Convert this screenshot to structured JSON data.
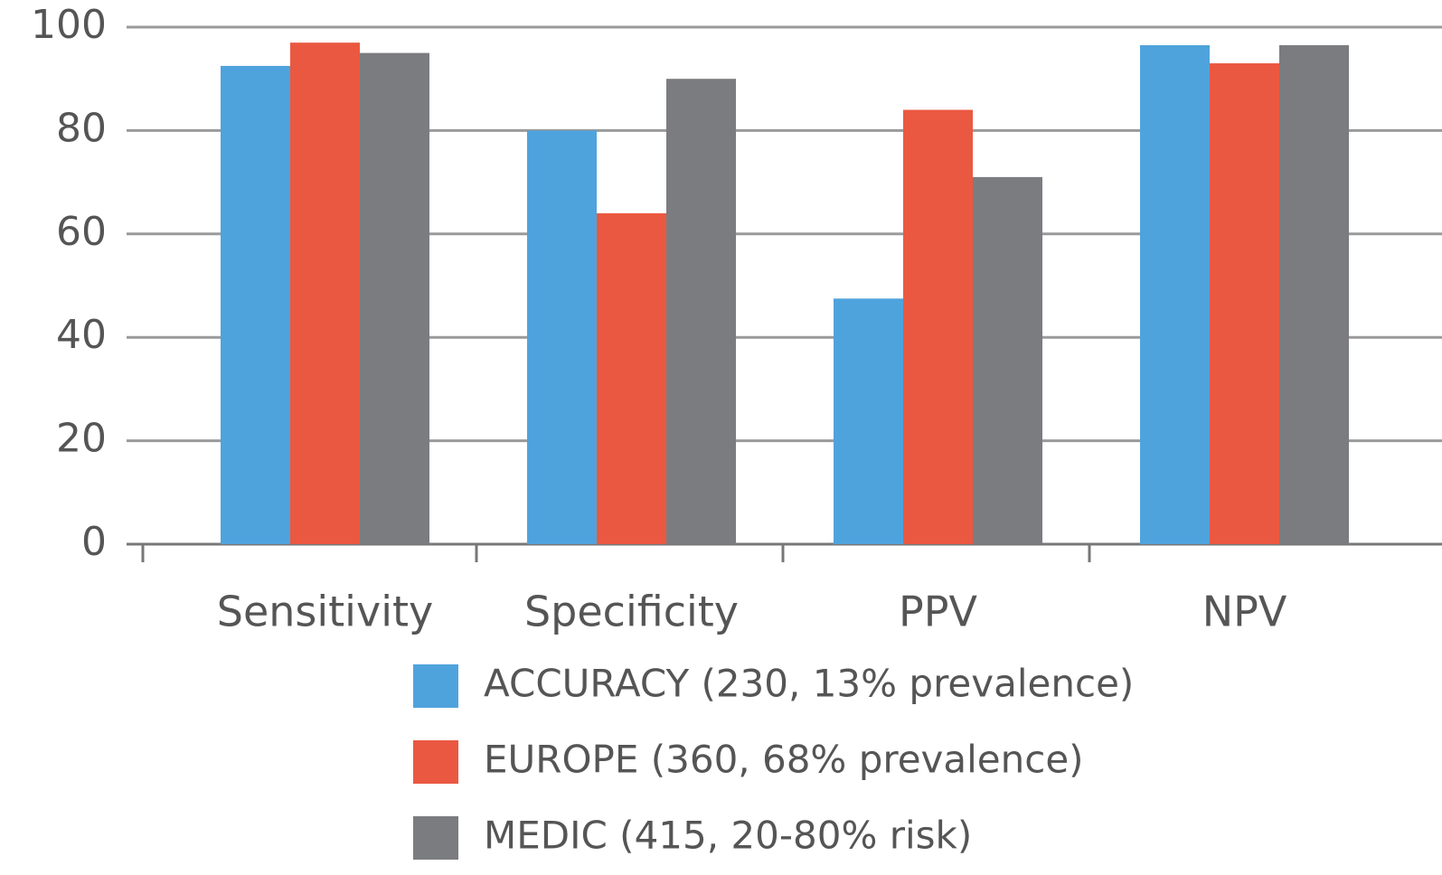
{
  "chart_data": {
    "type": "bar",
    "categories": [
      "Sensitivity",
      "Specificity",
      "PPV",
      "NPV"
    ],
    "series": [
      {
        "name": "ACCURACY (230, 13% prevalence)",
        "color": "#4fa3dc",
        "values": [
          92.5,
          80,
          47.5,
          96.5
        ]
      },
      {
        "name": "EUROPE (360, 68% prevalence)",
        "color": "#ea5841",
        "values": [
          97,
          64,
          84,
          93
        ]
      },
      {
        "name": "MEDIC (415, 20-80% risk)",
        "color": "#7b7c80",
        "values": [
          95,
          90,
          71,
          96.5
        ]
      }
    ],
    "ylim": [
      0,
      100
    ],
    "yticks": [
      0,
      20,
      40,
      60,
      80,
      100
    ],
    "grid": true
  }
}
